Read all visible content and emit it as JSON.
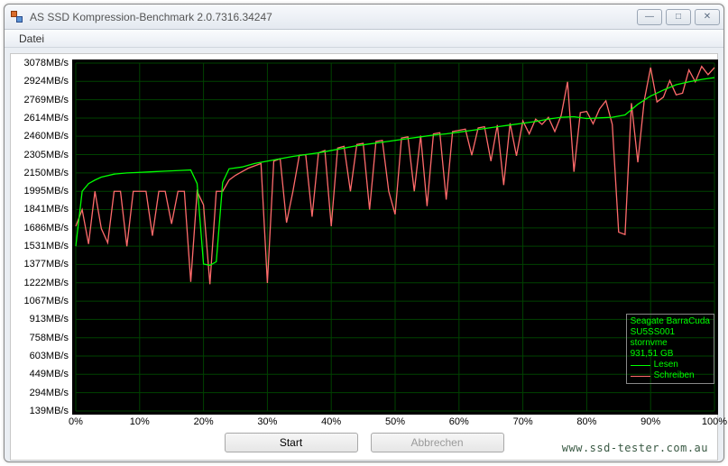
{
  "window": {
    "title": "AS SSD Kompression-Benchmark 2.0.7316.34247",
    "buttons": {
      "min": "—",
      "max": "□",
      "close": "✕"
    }
  },
  "menu": {
    "datei": "Datei"
  },
  "chart": {
    "type": "line",
    "background_color": "#000000",
    "grid_color": "#004200",
    "label_color": "#000000",
    "label_fontsize": 11,
    "y_unit": "MB/s",
    "y_ticks": [
      139,
      294,
      449,
      603,
      758,
      913,
      1067,
      1222,
      1377,
      1531,
      1686,
      1841,
      1995,
      2150,
      2305,
      2460,
      2614,
      2769,
      2924,
      3078
    ],
    "y_min": 139,
    "y_max": 3078,
    "x_ticks": [
      0,
      10,
      20,
      30,
      40,
      50,
      60,
      70,
      80,
      90,
      100
    ],
    "x_unit": "%",
    "x_min": 0,
    "x_max": 100,
    "series": {
      "lesen": {
        "label": "Lesen",
        "color": "#00ff00",
        "data": [
          [
            0,
            1531
          ],
          [
            1,
            1995
          ],
          [
            2,
            2060
          ],
          [
            3,
            2090
          ],
          [
            4,
            2115
          ],
          [
            6,
            2140
          ],
          [
            8,
            2150
          ],
          [
            10,
            2155
          ],
          [
            12,
            2160
          ],
          [
            14,
            2165
          ],
          [
            16,
            2170
          ],
          [
            18,
            2175
          ],
          [
            19,
            2060
          ],
          [
            20,
            1380
          ],
          [
            21,
            1370
          ],
          [
            22,
            1400
          ],
          [
            23,
            2070
          ],
          [
            24,
            2185
          ],
          [
            26,
            2200
          ],
          [
            28,
            2230
          ],
          [
            30,
            2250
          ],
          [
            32,
            2270
          ],
          [
            34,
            2290
          ],
          [
            36,
            2305
          ],
          [
            38,
            2320
          ],
          [
            40,
            2340
          ],
          [
            42,
            2360
          ],
          [
            44,
            2380
          ],
          [
            46,
            2395
          ],
          [
            48,
            2410
          ],
          [
            50,
            2425
          ],
          [
            52,
            2440
          ],
          [
            54,
            2455
          ],
          [
            56,
            2470
          ],
          [
            58,
            2480
          ],
          [
            60,
            2495
          ],
          [
            62,
            2510
          ],
          [
            64,
            2525
          ],
          [
            66,
            2540
          ],
          [
            68,
            2555
          ],
          [
            70,
            2570
          ],
          [
            72,
            2585
          ],
          [
            74,
            2605
          ],
          [
            76,
            2620
          ],
          [
            78,
            2625
          ],
          [
            80,
            2610
          ],
          [
            82,
            2615
          ],
          [
            84,
            2620
          ],
          [
            86,
            2640
          ],
          [
            88,
            2730
          ],
          [
            90,
            2800
          ],
          [
            92,
            2850
          ],
          [
            94,
            2895
          ],
          [
            96,
            2920
          ],
          [
            98,
            2940
          ],
          [
            100,
            2955
          ]
        ]
      },
      "schreiben": {
        "label": "Schreiben",
        "color": "#ff6b6b",
        "data": [
          [
            0,
            1700
          ],
          [
            1,
            1840
          ],
          [
            2,
            1550
          ],
          [
            3,
            1995
          ],
          [
            4,
            1680
          ],
          [
            5,
            1560
          ],
          [
            6,
            1995
          ],
          [
            7,
            1995
          ],
          [
            8,
            1530
          ],
          [
            9,
            1995
          ],
          [
            10,
            1995
          ],
          [
            11,
            1995
          ],
          [
            12,
            1620
          ],
          [
            13,
            1995
          ],
          [
            14,
            1995
          ],
          [
            15,
            1720
          ],
          [
            16,
            1995
          ],
          [
            17,
            1995
          ],
          [
            18,
            1230
          ],
          [
            19,
            1995
          ],
          [
            20,
            1880
          ],
          [
            21,
            1210
          ],
          [
            22,
            1995
          ],
          [
            23,
            1995
          ],
          [
            24,
            2090
          ],
          [
            25,
            2130
          ],
          [
            26,
            2160
          ],
          [
            27,
            2190
          ],
          [
            28,
            2210
          ],
          [
            29,
            2230
          ],
          [
            30,
            1220
          ],
          [
            31,
            2250
          ],
          [
            32,
            2270
          ],
          [
            33,
            1730
          ],
          [
            34,
            1995
          ],
          [
            35,
            2300
          ],
          [
            36,
            2305
          ],
          [
            37,
            1780
          ],
          [
            38,
            2320
          ],
          [
            39,
            2340
          ],
          [
            40,
            1700
          ],
          [
            41,
            2360
          ],
          [
            42,
            2375
          ],
          [
            43,
            1995
          ],
          [
            44,
            2390
          ],
          [
            45,
            2400
          ],
          [
            46,
            1840
          ],
          [
            47,
            2415
          ],
          [
            48,
            2425
          ],
          [
            49,
            1995
          ],
          [
            50,
            1800
          ],
          [
            51,
            2445
          ],
          [
            52,
            2455
          ],
          [
            53,
            1995
          ],
          [
            54,
            2465
          ],
          [
            55,
            1870
          ],
          [
            56,
            2480
          ],
          [
            57,
            2490
          ],
          [
            58,
            1925
          ],
          [
            59,
            2500
          ],
          [
            60,
            2510
          ],
          [
            61,
            2520
          ],
          [
            62,
            2300
          ],
          [
            63,
            2530
          ],
          [
            64,
            2540
          ],
          [
            65,
            2250
          ],
          [
            66,
            2555
          ],
          [
            67,
            2048
          ],
          [
            68,
            2570
          ],
          [
            69,
            2295
          ],
          [
            70,
            2590
          ],
          [
            71,
            2480
          ],
          [
            72,
            2605
          ],
          [
            73,
            2560
          ],
          [
            74,
            2620
          ],
          [
            75,
            2500
          ],
          [
            76,
            2636
          ],
          [
            77,
            2920
          ],
          [
            78,
            2160
          ],
          [
            79,
            2660
          ],
          [
            80,
            2670
          ],
          [
            81,
            2565
          ],
          [
            82,
            2690
          ],
          [
            83,
            2760
          ],
          [
            84,
            2560
          ],
          [
            85,
            1650
          ],
          [
            86,
            1630
          ],
          [
            87,
            2740
          ],
          [
            88,
            2240
          ],
          [
            89,
            2760
          ],
          [
            90,
            3040
          ],
          [
            91,
            2750
          ],
          [
            92,
            2790
          ],
          [
            93,
            2930
          ],
          [
            94,
            2810
          ],
          [
            95,
            2824
          ],
          [
            96,
            3020
          ],
          [
            97,
            2920
          ],
          [
            98,
            3050
          ],
          [
            99,
            2980
          ],
          [
            100,
            3040
          ]
        ]
      }
    }
  },
  "legend": {
    "border_color": "#888888",
    "text_color": "#00ff00",
    "device_line1": "Seagate BarraCuda",
    "device_line2": "SU5SS001",
    "driver": "stornvme",
    "capacity": "931,51 GB"
  },
  "buttons": {
    "start": "Start",
    "abort": "Abbrechen"
  },
  "watermark": {
    "text": "www.ssd-tester.com.au",
    "color": "#3a5a44"
  }
}
